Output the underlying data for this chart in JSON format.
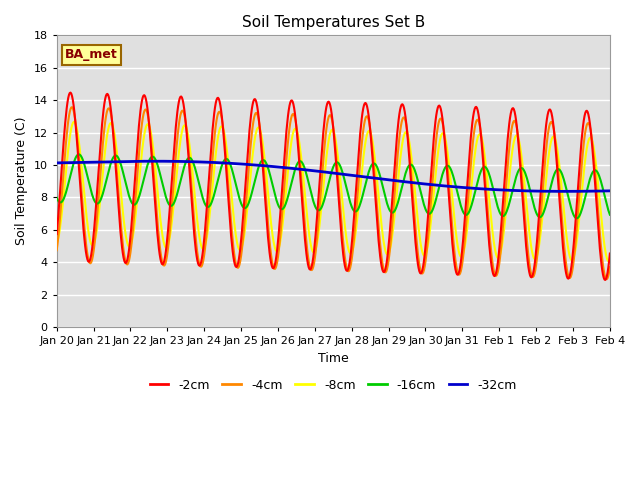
{
  "title": "Soil Temperatures Set B",
  "xlabel": "Time",
  "ylabel": "Soil Temperature (C)",
  "ylim": [
    0,
    18
  ],
  "yticks": [
    0,
    2,
    4,
    6,
    8,
    10,
    12,
    14,
    16,
    18
  ],
  "x_labels": [
    "Jan 20",
    "Jan 21",
    "Jan 22",
    "Jan 23",
    "Jan 24",
    "Jan 25",
    "Jan 26",
    "Jan 27",
    "Jan 28",
    "Jan 29",
    "Jan 30",
    "Jan 31",
    "Feb 1",
    "Feb 2",
    "Feb 3",
    "Feb 4"
  ],
  "colors": {
    "m2cm": "#ff0000",
    "m4cm": "#ff8800",
    "m8cm": "#ffff00",
    "m16cm": "#00cc00",
    "m32cm": "#0000cc"
  },
  "legend_labels": [
    "-2cm",
    "-4cm",
    "-8cm",
    "-16cm",
    "-32cm"
  ],
  "plot_bg_color": "#e0e0e0",
  "label_box_color": "#ffff99",
  "label_box_edge": "#996600",
  "label_text": "BA_met",
  "label_text_color": "#880000",
  "n_points": 721
}
